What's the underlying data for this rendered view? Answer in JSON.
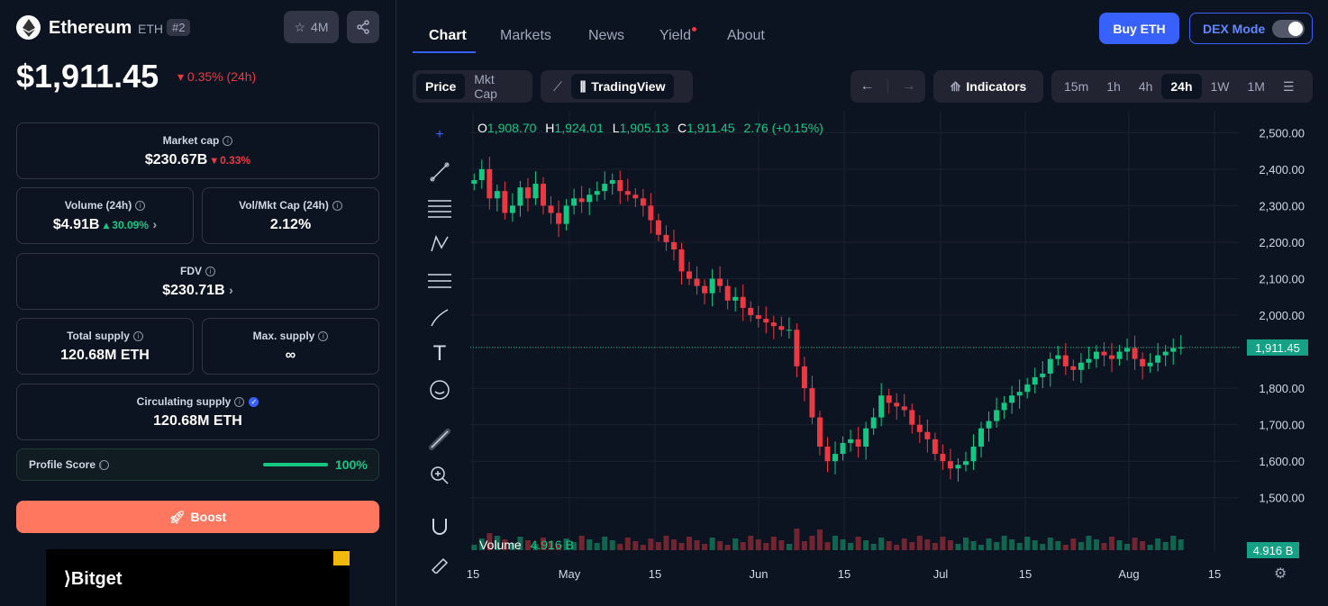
{
  "coin": {
    "name": "Ethereum",
    "symbol": "ETH",
    "rank": "#2",
    "watchlist_count": "4M",
    "price": "$1,911.45",
    "change_24h": "0.35% (24h)"
  },
  "stats": {
    "market_cap": {
      "label": "Market cap",
      "value": "$230.67B",
      "change": "0.33%"
    },
    "volume": {
      "label": "Volume (24h)",
      "value": "$4.91B",
      "change": "30.09%"
    },
    "vol_mkt": {
      "label": "Vol/Mkt Cap (24h)",
      "value": "2.12%"
    },
    "fdv": {
      "label": "FDV",
      "value": "$230.71B"
    },
    "total_supply": {
      "label": "Total supply",
      "value": "120.68M ETH"
    },
    "max_supply": {
      "label": "Max. supply",
      "value": "∞"
    },
    "circulating_supply": {
      "label": "Circulating supply",
      "value": "120.68M ETH"
    }
  },
  "profile": {
    "label": "Profile Score",
    "value": "100%",
    "fraction": 1.0
  },
  "boost_label": "Boost",
  "ad": {
    "brand": "Bitget"
  },
  "tabs": [
    "Chart",
    "Markets",
    "News",
    "Yield",
    "About"
  ],
  "buy_label": "Buy ETH",
  "dex_label": "DEX Mode",
  "chart_mode": [
    "Price",
    "Mkt Cap"
  ],
  "tradingview_label": "TradingView",
  "indicators_label": "Indicators",
  "timeframes": [
    "15m",
    "1h",
    "4h",
    "24h",
    "1W",
    "1M"
  ],
  "active_timeframe": "24h",
  "ohlc": {
    "o": "1,908.70",
    "h": "1,924.01",
    "l": "1,905.13",
    "c": "1,911.45",
    "chg": "2.76 (+0.15%)"
  },
  "volume_label": "Volume",
  "volume_value": "4.916 B",
  "chart_data": {
    "type": "candlestick",
    "y_ticks": [
      "2,500.00",
      "2,400.00",
      "2,300.00",
      "2,200.00",
      "2,100.00",
      "2,000.00",
      "1,800.00",
      "1,700.00",
      "1,600.00",
      "1,500.00"
    ],
    "x_ticks": [
      "15",
      "May",
      "15",
      "Jun",
      "15",
      "Jul",
      "15",
      "Aug",
      "15"
    ],
    "ylim": [
      1450,
      2560
    ],
    "last_price": "1,911.45",
    "last_volume": "4.916 B",
    "closes": [
      2370,
      2400,
      2320,
      2340,
      2280,
      2300,
      2350,
      2320,
      2360,
      2300,
      2280,
      2250,
      2300,
      2320,
      2310,
      2330,
      2340,
      2360,
      2370,
      2340,
      2330,
      2320,
      2300,
      2260,
      2220,
      2200,
      2180,
      2120,
      2100,
      2080,
      2060,
      2100,
      2080,
      2040,
      2050,
      2020,
      2000,
      1990,
      1980,
      1970,
      1960,
      1960,
      1860,
      1800,
      1720,
      1640,
      1600,
      1620,
      1650,
      1660,
      1640,
      1690,
      1720,
      1780,
      1760,
      1750,
      1740,
      1700,
      1680,
      1660,
      1620,
      1600,
      1580,
      1590,
      1600,
      1640,
      1690,
      1710,
      1740,
      1760,
      1780,
      1790,
      1810,
      1830,
      1840,
      1880,
      1890,
      1860,
      1850,
      1870,
      1880,
      1900,
      1890,
      1880,
      1900,
      1910,
      1880,
      1860,
      1870,
      1890,
      1900,
      1910,
      1911.45
    ],
    "colors": {
      "up": "#16c784",
      "down": "#ea3943"
    }
  }
}
